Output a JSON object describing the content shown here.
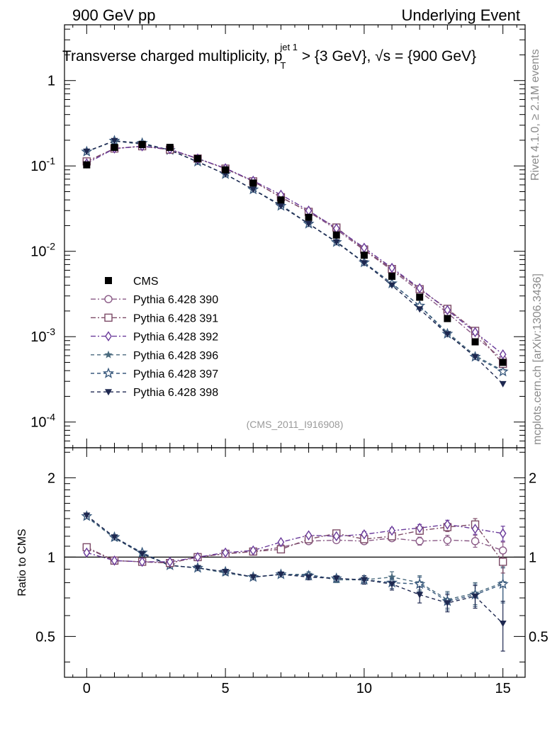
{
  "header": {
    "left": "900 GeV pp",
    "right": "Underlying Event"
  },
  "title": {
    "main": "Transverse charged multiplicity, p",
    "sup": "jet 1",
    "sub": "T",
    "rest": " > {3 GeV}, √s = {900 GeV}"
  },
  "side_label_top": "Rivet 4.1.0, ≥ 2.1M events",
  "side_label_bottom": "mcplots.cern.ch [arXiv:1306.3436]",
  "analysis_tag": "(CMS_2011_I916908)",
  "ratio_ylabel": "Ratio to CMS",
  "colors": {
    "CMS": "#000000",
    "p390": "#8a5a86",
    "p391": "#7c4a66",
    "p392": "#6a3a9a",
    "p396": "#4a6a7e",
    "p397": "#3a5a7e",
    "p398": "#1e2850"
  },
  "chart_data": [
    {
      "type": "scatter",
      "panel": "main",
      "yscale": "log",
      "xlim": [
        -0.8,
        15.8
      ],
      "ylim": [
        5e-05,
        4.5
      ],
      "yticks": [
        {
          "exp": "0",
          "label": "1",
          "value": 1
        },
        {
          "exp": "-1",
          "label": "10",
          "value": 0.1
        },
        {
          "exp": "-2",
          "label": "10",
          "value": 0.01
        },
        {
          "exp": "-3",
          "label": "10",
          "value": 0.001
        },
        {
          "exp": "-4",
          "label": "10",
          "value": 0.0001
        }
      ],
      "x": [
        0,
        1,
        2,
        3,
        4,
        5,
        6,
        7,
        8,
        9,
        10,
        11,
        12,
        13,
        14,
        15
      ],
      "series": [
        {
          "name": "CMS",
          "key": "CMS",
          "marker": "square-filled",
          "dash": "none",
          "values": [
            0.103,
            0.165,
            0.178,
            0.165,
            0.122,
            0.09,
            0.063,
            0.04,
            0.025,
            0.0155,
            0.009,
            0.0051,
            0.0029,
            0.00163,
            0.00087,
            0.0005
          ]
        },
        {
          "name": "Pythia 6.428 390",
          "key": "p390",
          "marker": "circle-open",
          "dash": "7,3,2,3",
          "values": [
            0.112,
            0.16,
            0.17,
            0.155,
            0.122,
            0.093,
            0.066,
            0.043,
            0.029,
            0.018,
            0.0103,
            0.006,
            0.0034,
            0.0019,
            0.00101,
            0.00054
          ]
        },
        {
          "name": "Pythia 6.428 391",
          "key": "p391",
          "marker": "square-open",
          "dash": "7,3,2,3",
          "values": [
            0.113,
            0.16,
            0.17,
            0.155,
            0.122,
            0.093,
            0.066,
            0.043,
            0.029,
            0.019,
            0.0105,
            0.0062,
            0.0036,
            0.00212,
            0.00117,
            0.00048
          ]
        },
        {
          "name": "Pythia 6.428 392",
          "key": "p392",
          "marker": "diamond-open",
          "dash": "7,3,2,3",
          "values": [
            0.107,
            0.16,
            0.17,
            0.157,
            0.122,
            0.094,
            0.067,
            0.046,
            0.03,
            0.0185,
            0.011,
            0.0064,
            0.0037,
            0.00205,
            0.00113,
            0.00062
          ]
        },
        {
          "name": "Pythia 6.428 396",
          "key": "p396",
          "marker": "star-filled",
          "dash": "5,4",
          "values": [
            0.147,
            0.195,
            0.18,
            0.153,
            0.112,
            0.08,
            0.053,
            0.035,
            0.021,
            0.013,
            0.0074,
            0.0042,
            0.0023,
            0.00112,
            0.0006,
            0.0004
          ]
        },
        {
          "name": "Pythia 6.428 397",
          "key": "p397",
          "marker": "star-open",
          "dash": "5,4",
          "values": [
            0.147,
            0.197,
            0.185,
            0.153,
            0.112,
            0.08,
            0.053,
            0.034,
            0.021,
            0.0128,
            0.0074,
            0.0042,
            0.0023,
            0.00108,
            0.00058,
            0.00039
          ]
        },
        {
          "name": "Pythia 6.428 398",
          "key": "p398",
          "marker": "triangle-down-filled",
          "dash": "5,4",
          "values": [
            0.148,
            0.197,
            0.183,
            0.153,
            0.112,
            0.08,
            0.053,
            0.034,
            0.021,
            0.0128,
            0.0073,
            0.004,
            0.0021,
            0.00107,
            0.00058,
            0.00028
          ]
        }
      ]
    },
    {
      "type": "scatter",
      "panel": "ratio",
      "xlabel": "",
      "ylabel": "Ratio to CMS",
      "xlim": [
        -0.8,
        15.8
      ],
      "ylim": [
        0.35,
        2.6
      ],
      "yscale": "log",
      "yticks": [
        0.5,
        1,
        2
      ],
      "xticks": [
        0,
        5,
        10,
        15
      ],
      "x": [
        0,
        1,
        2,
        3,
        4,
        5,
        6,
        7,
        8,
        9,
        10,
        11,
        12,
        13,
        14,
        15
      ],
      "series": [
        {
          "name": "Pythia 6.428 390",
          "key": "p390",
          "marker": "circle-open",
          "dash": "7,3,2,3",
          "values": [
            1.08,
            0.97,
            0.96,
            0.95,
            1.0,
            1.03,
            1.05,
            1.09,
            1.15,
            1.16,
            1.15,
            1.18,
            1.15,
            1.16,
            1.15,
            1.06
          ],
          "err": [
            0.02,
            0.01,
            0.01,
            0.01,
            0.01,
            0.01,
            0.01,
            0.01,
            0.02,
            0.02,
            0.03,
            0.03,
            0.04,
            0.05,
            0.06,
            0.08
          ]
        },
        {
          "name": "Pythia 6.428 391",
          "key": "p391",
          "marker": "square-open",
          "dash": "7,3,2,3",
          "values": [
            1.09,
            0.97,
            0.96,
            0.95,
            1.0,
            1.03,
            1.05,
            1.07,
            1.17,
            1.23,
            1.17,
            1.2,
            1.26,
            1.3,
            1.33,
            0.96
          ],
          "err": [
            0.02,
            0.01,
            0.01,
            0.01,
            0.01,
            0.01,
            0.01,
            0.01,
            0.02,
            0.02,
            0.03,
            0.03,
            0.04,
            0.05,
            0.07,
            0.09
          ]
        },
        {
          "name": "Pythia 6.428 392",
          "key": "p392",
          "marker": "diamond-open",
          "dash": "7,3,2,3",
          "values": [
            1.04,
            0.97,
            0.96,
            0.96,
            1.0,
            1.04,
            1.06,
            1.14,
            1.21,
            1.2,
            1.22,
            1.26,
            1.29,
            1.33,
            1.28,
            1.23
          ],
          "err": [
            0.02,
            0.01,
            0.01,
            0.01,
            0.01,
            0.01,
            0.01,
            0.01,
            0.02,
            0.02,
            0.03,
            0.03,
            0.04,
            0.05,
            0.06,
            0.08
          ]
        },
        {
          "name": "Pythia 6.428 396",
          "key": "p396",
          "marker": "star-filled",
          "dash": "5,4",
          "values": [
            1.42,
            1.18,
            1.03,
            0.93,
            0.91,
            0.87,
            0.84,
            0.86,
            0.86,
            0.82,
            0.82,
            0.84,
            0.8,
            0.69,
            0.73,
            0.8
          ],
          "err": [
            0.02,
            0.01,
            0.01,
            0.01,
            0.01,
            0.01,
            0.01,
            0.01,
            0.02,
            0.02,
            0.03,
            0.04,
            0.05,
            0.05,
            0.07,
            0.12
          ]
        },
        {
          "name": "Pythia 6.428 397",
          "key": "p397",
          "marker": "star-open",
          "dash": "5,4",
          "values": [
            1.43,
            1.19,
            1.04,
            0.93,
            0.91,
            0.88,
            0.84,
            0.86,
            0.85,
            0.83,
            0.82,
            0.8,
            0.79,
            0.68,
            0.72,
            0.79
          ],
          "err": [
            0.02,
            0.01,
            0.01,
            0.01,
            0.01,
            0.01,
            0.01,
            0.01,
            0.02,
            0.02,
            0.03,
            0.04,
            0.05,
            0.05,
            0.07,
            0.12
          ]
        },
        {
          "name": "Pythia 6.428 398",
          "key": "p398",
          "marker": "triangle-down-filled",
          "dash": "5,4",
          "values": [
            1.44,
            1.19,
            1.03,
            0.93,
            0.91,
            0.88,
            0.84,
            0.86,
            0.84,
            0.83,
            0.82,
            0.79,
            0.72,
            0.67,
            0.71,
            0.56
          ],
          "err": [
            0.02,
            0.01,
            0.01,
            0.01,
            0.01,
            0.01,
            0.01,
            0.01,
            0.02,
            0.02,
            0.03,
            0.04,
            0.05,
            0.05,
            0.07,
            0.12
          ]
        }
      ]
    }
  ]
}
